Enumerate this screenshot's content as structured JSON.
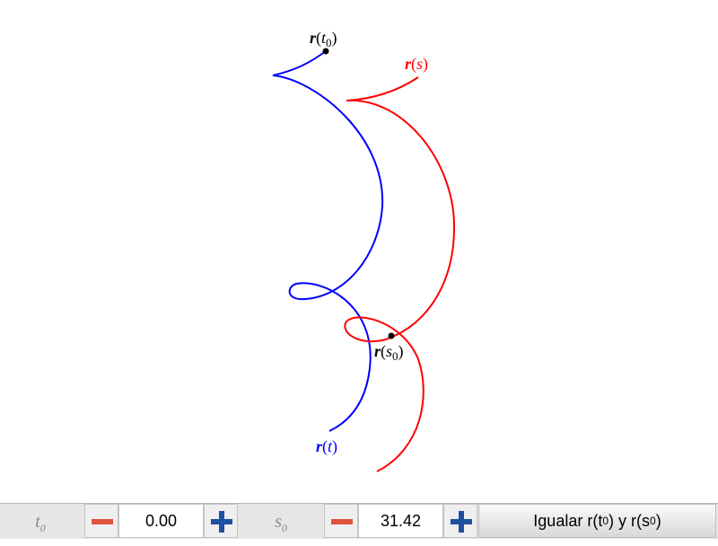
{
  "plot": {
    "curve_t": {
      "label_bold": "r",
      "label_var": "t",
      "color": "#0000ff"
    },
    "curve_s": {
      "label_bold": "r",
      "label_var": "s",
      "color": "#ff0000"
    },
    "point_t0": {
      "label_bold": "r",
      "label_var": "t",
      "label_sub": "0"
    },
    "point_s0": {
      "label_bold": "r",
      "label_var": "s",
      "label_sub": "0"
    }
  },
  "controls": {
    "t0": {
      "label": "t",
      "label_sub": "0",
      "value": "0.00",
      "minus": "minus-icon",
      "plus": "plus-icon"
    },
    "s0": {
      "label": "s",
      "label_sub": "0",
      "value": "31.42",
      "minus": "minus-icon",
      "plus": "plus-icon"
    },
    "match_button": {
      "p1": "Igualar r(t",
      "sub1": "0",
      "p2": ") y r(s",
      "sub2": "0",
      "p3": ")"
    }
  }
}
